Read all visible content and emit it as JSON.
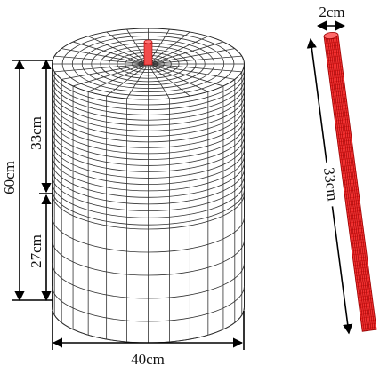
{
  "cylinder": {
    "height_label": "60cm",
    "upper_label": "33cm",
    "lower_label": "27cm",
    "diameter_label": "40cm"
  },
  "rod": {
    "diameter_label": "2cm",
    "length_label": "33cm"
  }
}
